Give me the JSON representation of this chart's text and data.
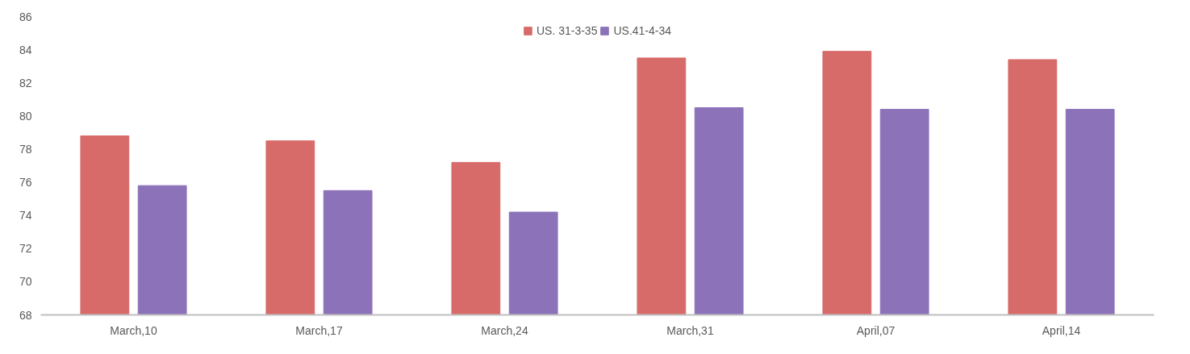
{
  "chart_data": {
    "type": "bar",
    "categories": [
      "March,10",
      "March,17",
      "March,24",
      "March,31",
      "April,07",
      "April,14"
    ],
    "series": [
      {
        "name": "US. 31-3-35",
        "color": "#d76b69",
        "values": [
          78.8,
          78.5,
          77.2,
          83.5,
          83.9,
          83.4
        ]
      },
      {
        "name": "US.41-4-34",
        "color": "#8c72b8",
        "values": [
          75.8,
          75.5,
          74.2,
          80.5,
          80.4,
          80.4
        ]
      }
    ],
    "ylim": [
      68,
      86
    ],
    "yticks": [
      68,
      70,
      72,
      74,
      76,
      78,
      80,
      82,
      84,
      86
    ],
    "grid": false,
    "legend": "top"
  }
}
